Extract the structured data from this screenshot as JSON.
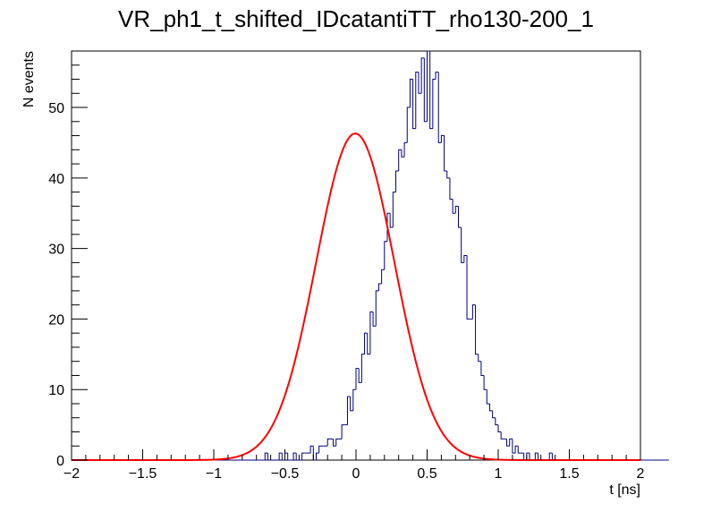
{
  "chart_data": {
    "type": "histogram",
    "title": "VR_ph1_t_shifted_IDcatantiTT_rho130-200_1",
    "xlabel": "t [ns]",
    "ylabel": "N events",
    "xlim": [
      -2,
      2
    ],
    "ylim": [
      0,
      58
    ],
    "x_ticks": [
      -2,
      -1.5,
      -1,
      -0.5,
      0,
      0.5,
      1,
      1.5,
      2
    ],
    "x_tick_labels": [
      "−2",
      "−1.5",
      "−1",
      "−0.5",
      "0",
      "0.5",
      "1",
      "1.5",
      "2"
    ],
    "y_ticks": [
      0,
      10,
      20,
      30,
      40,
      50
    ],
    "y_tick_labels": [
      "0",
      "10",
      "20",
      "30",
      "40",
      "50"
    ],
    "grid": false,
    "histogram": {
      "name": "data",
      "color": "#000080",
      "bin_edges_start": -2.0,
      "bin_width": 0.02,
      "counts": [
        0,
        0,
        0,
        0,
        0,
        0,
        0,
        0,
        0,
        0,
        0,
        0,
        0,
        0,
        0,
        0,
        0,
        0,
        0,
        0,
        0,
        0,
        0,
        0,
        0,
        0,
        0,
        0,
        0,
        0,
        0,
        0,
        0,
        0,
        0,
        0,
        0,
        0,
        0,
        0,
        0,
        0,
        0,
        0,
        0,
        0,
        0,
        0,
        0,
        0,
        0,
        0,
        0,
        0,
        0,
        0,
        0,
        0,
        0,
        0,
        0,
        0,
        0,
        0,
        0,
        0,
        0,
        0,
        1,
        0,
        0,
        0,
        0,
        1,
        0,
        1,
        0,
        0,
        1,
        0,
        0,
        1,
        1,
        1,
        2,
        0,
        1,
        2,
        2,
        2,
        3,
        3,
        2,
        3,
        3,
        5,
        5,
        9,
        7,
        10,
        13,
        11,
        15,
        18,
        15,
        21,
        19,
        24,
        25,
        27,
        31,
        35,
        33,
        38,
        41,
        44,
        43,
        45,
        50,
        54,
        47,
        55,
        52,
        57,
        48,
        58,
        47,
        54,
        55,
        45,
        46,
        41,
        40,
        37,
        35,
        36,
        33,
        28,
        29,
        20,
        20,
        22,
        15,
        14,
        12,
        10,
        8,
        7,
        6,
        5,
        4,
        3,
        3,
        2,
        3,
        1,
        2,
        1,
        1,
        0,
        1,
        0,
        0,
        1,
        0,
        0,
        0,
        0,
        1,
        0,
        0,
        0,
        0,
        0,
        0,
        0,
        0,
        0,
        0,
        0,
        0,
        0,
        0,
        0,
        0,
        0,
        0,
        0,
        0,
        0,
        0,
        0,
        0,
        0,
        0,
        0,
        0,
        0,
        0,
        0,
        0,
        0,
        0,
        0,
        0,
        0,
        0,
        0,
        0,
        0
      ]
    },
    "fit": {
      "name": "gaussian fit",
      "color": "#ff0000",
      "function": "gaus",
      "amplitude": 46.3,
      "mean": -0.005,
      "sigma": 0.275
    }
  }
}
